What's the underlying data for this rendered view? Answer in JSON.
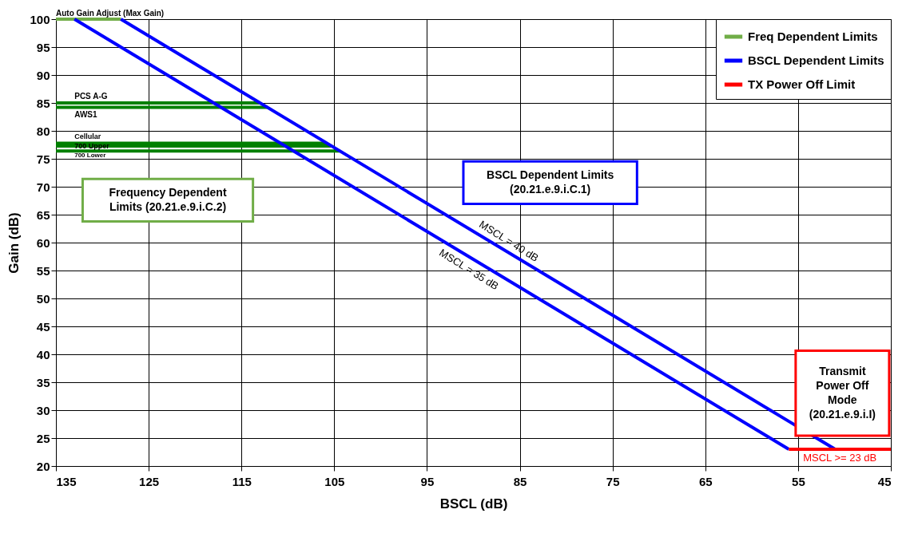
{
  "chart_data": {
    "type": "line",
    "xlabel": "BSCL (dB)",
    "ylabel": "Gain (dB)",
    "xlim": [
      135,
      45
    ],
    "xticks": [
      135,
      125,
      115,
      105,
      95,
      85,
      75,
      65,
      55,
      45
    ],
    "ylim": [
      20,
      100
    ],
    "yticks": [
      20,
      25,
      30,
      35,
      40,
      45,
      50,
      55,
      60,
      65,
      70,
      75,
      80,
      85,
      90,
      95,
      100
    ],
    "grid": true,
    "legend": "top right",
    "marker": "none",
    "line_style": "solid",
    "series": [
      {
        "name": "Freq Dependent Limits",
        "color": "#70ad47",
        "x": [
          135,
          128
        ],
        "values": [
          100,
          100
        ]
      },
      {
        "color": "#008000",
        "x": [
          135,
          113
        ],
        "values": [
          85,
          85
        ]
      },
      {
        "color": "#008000",
        "x": [
          135,
          112.2
        ],
        "values": [
          84.2,
          84.2
        ]
      },
      {
        "color": "#008000",
        "x": [
          135,
          105.8
        ],
        "values": [
          77.8,
          77.8
        ]
      },
      {
        "color": "#008000",
        "x": [
          135,
          105.3
        ],
        "values": [
          77.3,
          77.3
        ]
      },
      {
        "color": "#008000",
        "x": [
          135,
          104.4
        ],
        "values": [
          76.4,
          76.4
        ]
      },
      {
        "name": "BSCL Dependent Limits",
        "color": "#0000ff",
        "x": [
          128,
          51
        ],
        "values": [
          100,
          23
        ]
      },
      {
        "color": "#0000ff",
        "x": [
          133,
          56
        ],
        "values": [
          100,
          23
        ]
      },
      {
        "name": "TX Power Off Limit",
        "color": "#ff0000",
        "x": [
          56,
          45
        ],
        "values": [
          23,
          23
        ]
      }
    ],
    "annotations": [
      {
        "text": "Auto Gain Adjust (Max Gain)",
        "x": 135,
        "y": 100
      },
      {
        "text": "PCS A-G",
        "x": 133,
        "y": 85
      },
      {
        "text": "AWS1",
        "x": 133,
        "y": 84.2
      },
      {
        "text": "Cellular",
        "x": 133,
        "y": 77.8
      },
      {
        "text": "700 Upper",
        "x": 133,
        "y": 77.3
      },
      {
        "text": "700 Lower",
        "x": 133,
        "y": 76.4
      },
      {
        "text": "MSCL = 40 dB",
        "x": 86.3,
        "y": 58.3
      },
      {
        "text": "MSCL = 35 dB",
        "x": 90,
        "y": 57
      },
      {
        "text": "MSCL >= 23 dB",
        "x": 50.5,
        "y": 23
      },
      "Frequency Dependent\nLimits (20.21.e.9.i.C.2)",
      "BSCL Dependent Limits\n(20.21.e.9.i.C.1)",
      "Transmit\nPower Off\nMode\n(20.21.e.9.i.I)"
    ]
  }
}
